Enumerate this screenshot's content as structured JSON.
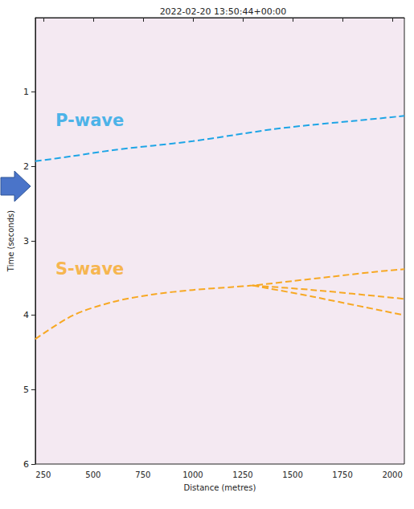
{
  "chart_data": {
    "type": "line",
    "title": "2022-02-20 13:50:44+00:00",
    "x_label": "Distance (metres)",
    "y_label": "Time (seconds)",
    "xlim": [
      210,
      2060
    ],
    "ylim": [
      6,
      0
    ],
    "xticks": [
      250,
      500,
      750,
      1000,
      1250,
      1500,
      1750,
      2000
    ],
    "yticks": [
      1,
      2,
      3,
      4,
      5,
      6
    ],
    "grid": false,
    "series": [
      {
        "name": "P-wave",
        "color": "#1ea5e6",
        "line_style": "dashed",
        "x": [
          210,
          400,
          600,
          800,
          1000,
          1200,
          1400,
          1600,
          1800,
          2060
        ],
        "values": [
          1.93,
          1.86,
          1.78,
          1.72,
          1.66,
          1.58,
          1.5,
          1.44,
          1.39,
          1.32
        ]
      },
      {
        "name": "S-wave",
        "color": "#f7a823",
        "line_style": "dashed",
        "x": [
          210,
          400,
          600,
          800,
          1000,
          1200,
          1300,
          1500,
          1700,
          1900,
          2060,
          null,
          1300,
          1600,
          2060,
          null,
          1300,
          1600,
          2060
        ],
        "values": [
          4.32,
          4.0,
          3.82,
          3.72,
          3.66,
          3.62,
          3.6,
          3.54,
          3.48,
          3.42,
          3.38,
          null,
          3.6,
          3.66,
          3.78,
          null,
          3.6,
          3.75,
          4.0
        ]
      }
    ],
    "annotations": [
      {
        "text": "P-wave",
        "x": 483,
        "y": 1.38,
        "color": "#1ea5e6"
      },
      {
        "text": "S-wave",
        "x": 483,
        "y": 3.38,
        "color": "#f7a823"
      }
    ]
  }
}
